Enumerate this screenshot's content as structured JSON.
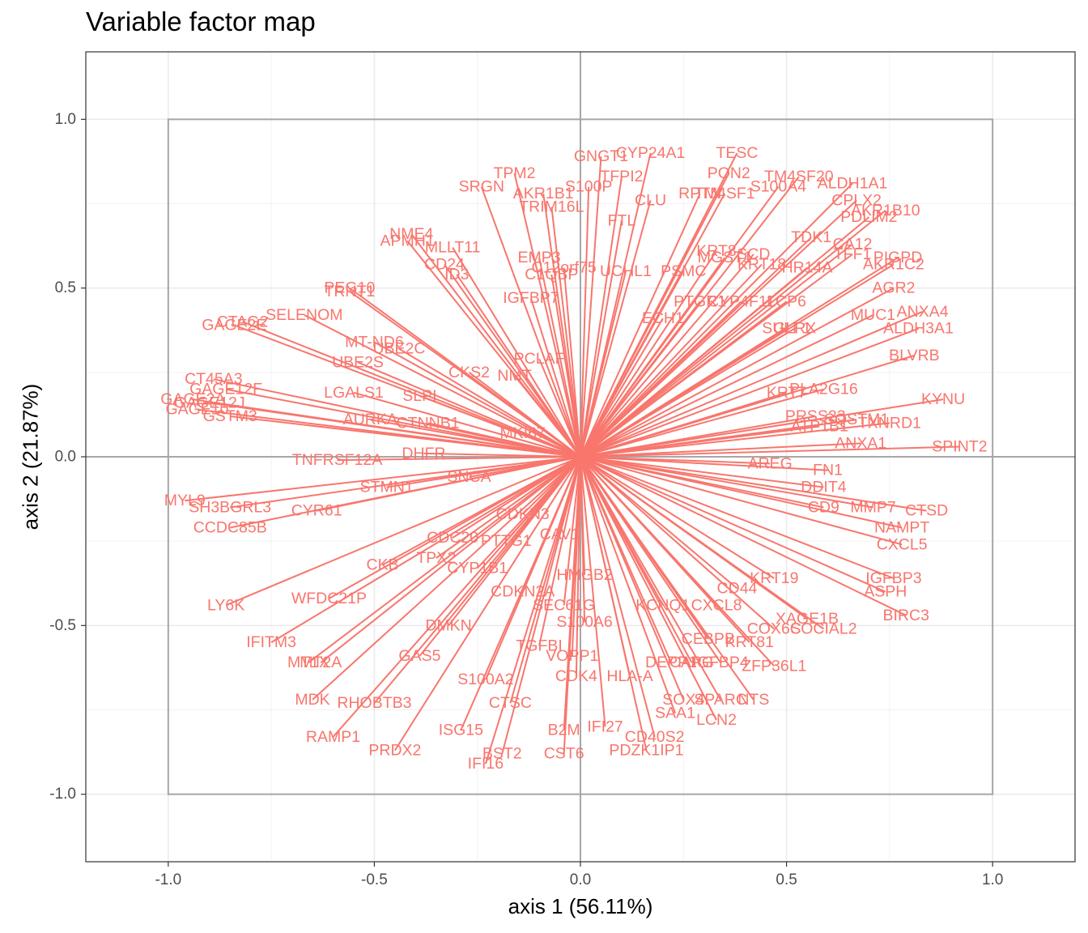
{
  "chart_data": {
    "type": "scatter",
    "title": "Variable factor map",
    "xlabel": "axis 1 (56.11%)",
    "ylabel": "axis 2 (21.87%)",
    "xlim": [
      -1.2,
      1.2
    ],
    "ylim": [
      -1.2,
      1.2
    ],
    "x_ticks": [
      -1.0,
      -0.5,
      0.0,
      0.5,
      1.0
    ],
    "y_ticks": [
      -1.0,
      -0.5,
      0.0,
      0.5,
      1.0
    ],
    "x_tick_labels": [
      "-1.0",
      "-0.5",
      "0.0",
      "0.5",
      "1.0"
    ],
    "y_tick_labels": [
      "-1.0",
      "-0.5",
      "0.0",
      "0.5",
      "1.0"
    ],
    "grid": true,
    "reference_square": [
      -1,
      1
    ],
    "arrow_color": "#F8766D",
    "variables": [
      {
        "name": "GNGT1",
        "x": 0.05,
        "y": 0.89
      },
      {
        "name": "CYP24A1",
        "x": 0.17,
        "y": 0.9
      },
      {
        "name": "TESC",
        "x": 0.38,
        "y": 0.9
      },
      {
        "name": "TPM2",
        "x": -0.16,
        "y": 0.84
      },
      {
        "name": "TFPI2",
        "x": 0.1,
        "y": 0.83
      },
      {
        "name": "PON2",
        "x": 0.36,
        "y": 0.84
      },
      {
        "name": "TM4SF20",
        "x": 0.53,
        "y": 0.83
      },
      {
        "name": "ALDH1A1",
        "x": 0.66,
        "y": 0.81
      },
      {
        "name": "SRGN",
        "x": -0.24,
        "y": 0.8
      },
      {
        "name": "S100P",
        "x": 0.02,
        "y": 0.8
      },
      {
        "name": "AKR1B1",
        "x": -0.09,
        "y": 0.78
      },
      {
        "name": "RPTN",
        "x": 0.29,
        "y": 0.78
      },
      {
        "name": "TM4SF1",
        "x": 0.35,
        "y": 0.78
      },
      {
        "name": "S100A4",
        "x": 0.48,
        "y": 0.8
      },
      {
        "name": "CLU",
        "x": 0.17,
        "y": 0.76
      },
      {
        "name": "CPLX2",
        "x": 0.67,
        "y": 0.76
      },
      {
        "name": "TRIM16L",
        "x": -0.07,
        "y": 0.74
      },
      {
        "name": "AKR1B10",
        "x": 0.74,
        "y": 0.73
      },
      {
        "name": "FTL",
        "x": 0.1,
        "y": 0.7
      },
      {
        "name": "PDLIM2",
        "x": 0.7,
        "y": 0.71
      },
      {
        "name": "NME4",
        "x": -0.41,
        "y": 0.66
      },
      {
        "name": "APMH1",
        "x": -0.42,
        "y": 0.64
      },
      {
        "name": "TDK1",
        "x": 0.56,
        "y": 0.65
      },
      {
        "name": "MLLT11",
        "x": -0.31,
        "y": 0.62
      },
      {
        "name": "CA12",
        "x": 0.66,
        "y": 0.63
      },
      {
        "name": "EMP3",
        "x": -0.1,
        "y": 0.59
      },
      {
        "name": "KRT8",
        "x": 0.33,
        "y": 0.61
      },
      {
        "name": "CD24",
        "x": -0.33,
        "y": 0.57
      },
      {
        "name": "C12orf75",
        "x": -0.04,
        "y": 0.56
      },
      {
        "name": "SCD",
        "x": 0.42,
        "y": 0.6
      },
      {
        "name": "TFF1",
        "x": 0.66,
        "y": 0.6
      },
      {
        "name": "PIGPD",
        "x": 0.77,
        "y": 0.59
      },
      {
        "name": "ID3",
        "x": -0.3,
        "y": 0.54
      },
      {
        "name": "C1QBP",
        "x": -0.07,
        "y": 0.54
      },
      {
        "name": "MGST1",
        "x": 0.35,
        "y": 0.59
      },
      {
        "name": "UCHL1",
        "x": 0.11,
        "y": 0.55
      },
      {
        "name": "PSMC",
        "x": 0.25,
        "y": 0.55
      },
      {
        "name": "KRT18",
        "x": 0.44,
        "y": 0.57
      },
      {
        "name": "HR14A",
        "x": 0.55,
        "y": 0.56
      },
      {
        "name": "AKR1C2",
        "x": 0.76,
        "y": 0.57
      },
      {
        "name": "AGR2",
        "x": 0.76,
        "y": 0.5
      },
      {
        "name": "PEG10",
        "x": -0.56,
        "y": 0.5
      },
      {
        "name": "TRNT1",
        "x": -0.56,
        "y": 0.49
      },
      {
        "name": "IGFBP7",
        "x": -0.12,
        "y": 0.47
      },
      {
        "name": "PTGR1",
        "x": 0.29,
        "y": 0.46
      },
      {
        "name": "CYP4F11",
        "x": 0.39,
        "y": 0.46
      },
      {
        "name": "LCP6",
        "x": 0.5,
        "y": 0.46
      },
      {
        "name": "MUC1",
        "x": 0.71,
        "y": 0.42
      },
      {
        "name": "ANXA4",
        "x": 0.83,
        "y": 0.43
      },
      {
        "name": "SELENOM",
        "x": -0.67,
        "y": 0.42
      },
      {
        "name": "ECH1",
        "x": 0.2,
        "y": 0.41
      },
      {
        "name": "CTAG2",
        "x": -0.82,
        "y": 0.4
      },
      {
        "name": "GAGE2E",
        "x": -0.84,
        "y": 0.39
      },
      {
        "name": "GLRX",
        "x": 0.52,
        "y": 0.38
      },
      {
        "name": "SULF1",
        "x": 0.5,
        "y": 0.38
      },
      {
        "name": "ALDH3A1",
        "x": 0.82,
        "y": 0.38
      },
      {
        "name": "MT-ND6",
        "x": -0.5,
        "y": 0.34
      },
      {
        "name": "UBE2C",
        "x": -0.44,
        "y": 0.32
      },
      {
        "name": "BLVRB",
        "x": 0.81,
        "y": 0.3
      },
      {
        "name": "UBE2S",
        "x": -0.54,
        "y": 0.28
      },
      {
        "name": "PCLAF",
        "x": -0.1,
        "y": 0.29
      },
      {
        "name": "CKS2",
        "x": -0.27,
        "y": 0.25
      },
      {
        "name": "CT45A3",
        "x": -0.89,
        "y": 0.23
      },
      {
        "name": "NMT",
        "x": -0.16,
        "y": 0.24
      },
      {
        "name": "GAGE12F",
        "x": -0.86,
        "y": 0.2
      },
      {
        "name": "PLA2G16",
        "x": 0.59,
        "y": 0.2
      },
      {
        "name": "KRT7",
        "x": 0.5,
        "y": 0.19
      },
      {
        "name": "LGALS1",
        "x": -0.55,
        "y": 0.19
      },
      {
        "name": "SLPI",
        "x": -0.39,
        "y": 0.18
      },
      {
        "name": "KYNU",
        "x": 0.88,
        "y": 0.17
      },
      {
        "name": "GAGE2A",
        "x": -0.94,
        "y": 0.17
      },
      {
        "name": "GAGE12J",
        "x": -0.9,
        "y": 0.16
      },
      {
        "name": "GAGE10",
        "x": -0.93,
        "y": 0.14
      },
      {
        "name": "GSTM3",
        "x": -0.85,
        "y": 0.12
      },
      {
        "name": "PRSS23",
        "x": 0.57,
        "y": 0.12
      },
      {
        "name": "SQSTM1",
        "x": 0.67,
        "y": 0.11
      },
      {
        "name": "TXNRD1",
        "x": 0.75,
        "y": 0.1
      },
      {
        "name": "AURKA",
        "x": -0.51,
        "y": 0.11
      },
      {
        "name": "CTNNB1",
        "x": -0.37,
        "y": 0.1
      },
      {
        "name": "ATP1B1",
        "x": 0.58,
        "y": 0.09
      },
      {
        "name": "MKI67",
        "x": -0.14,
        "y": 0.07
      },
      {
        "name": "ANXA1",
        "x": 0.68,
        "y": 0.04
      },
      {
        "name": "SPINT2",
        "x": 0.92,
        "y": 0.03
      },
      {
        "name": "DHFR",
        "x": -0.38,
        "y": 0.01
      },
      {
        "name": "TNFRSF12A",
        "x": -0.59,
        "y": -0.01
      },
      {
        "name": "AREG",
        "x": 0.46,
        "y": -0.02
      },
      {
        "name": "FN1",
        "x": 0.6,
        "y": -0.04
      },
      {
        "name": "MYL9",
        "x": -0.96,
        "y": -0.13
      },
      {
        "name": "STMN1",
        "x": -0.47,
        "y": -0.09
      },
      {
        "name": "SNCA",
        "x": -0.27,
        "y": -0.06
      },
      {
        "name": "DDIT4",
        "x": 0.59,
        "y": -0.09
      },
      {
        "name": "SH3BGRL3",
        "x": -0.85,
        "y": -0.15
      },
      {
        "name": "CYR61",
        "x": -0.64,
        "y": -0.16
      },
      {
        "name": "CD9",
        "x": 0.59,
        "y": -0.15
      },
      {
        "name": "MMP7",
        "x": 0.71,
        "y": -0.15
      },
      {
        "name": "CTSD",
        "x": 0.84,
        "y": -0.16
      },
      {
        "name": "CCDC85B",
        "x": -0.85,
        "y": -0.21
      },
      {
        "name": "CDKN3",
        "x": -0.14,
        "y": -0.17
      },
      {
        "name": "NAMPT",
        "x": 0.78,
        "y": -0.21
      },
      {
        "name": "CDC20",
        "x": -0.31,
        "y": -0.24
      },
      {
        "name": "PTTG1",
        "x": -0.18,
        "y": -0.25
      },
      {
        "name": "CAV1",
        "x": -0.05,
        "y": -0.23
      },
      {
        "name": "CXCL5",
        "x": 0.78,
        "y": -0.26
      },
      {
        "name": "TPX2",
        "x": -0.35,
        "y": -0.3
      },
      {
        "name": "CKB",
        "x": -0.48,
        "y": -0.32
      },
      {
        "name": "CYP1B1",
        "x": -0.25,
        "y": -0.33
      },
      {
        "name": "HMGB2",
        "x": 0.01,
        "y": -0.35
      },
      {
        "name": "IGFBP3",
        "x": 0.76,
        "y": -0.36
      },
      {
        "name": "KRT19",
        "x": 0.47,
        "y": -0.36
      },
      {
        "name": "ASPH",
        "x": 0.74,
        "y": -0.4
      },
      {
        "name": "CD44",
        "x": 0.38,
        "y": -0.39
      },
      {
        "name": "CDKN2A",
        "x": -0.14,
        "y": -0.4
      },
      {
        "name": "WFDC21P",
        "x": -0.61,
        "y": -0.42
      },
      {
        "name": "LY6K",
        "x": -0.86,
        "y": -0.44
      },
      {
        "name": "SEC61G",
        "x": -0.04,
        "y": -0.44
      },
      {
        "name": "KCNQ1",
        "x": 0.2,
        "y": -0.44
      },
      {
        "name": "CXCL8",
        "x": 0.33,
        "y": -0.44
      },
      {
        "name": "BIRC3",
        "x": 0.79,
        "y": -0.47
      },
      {
        "name": "S100A6",
        "x": 0.01,
        "y": -0.49
      },
      {
        "name": "XAGE1B",
        "x": 0.55,
        "y": -0.48
      },
      {
        "name": "DMKN",
        "x": -0.32,
        "y": -0.5
      },
      {
        "name": "COX6C",
        "x": 0.47,
        "y": -0.51
      },
      {
        "name": "SOCIAL2",
        "x": 0.59,
        "y": -0.51
      },
      {
        "name": "IFITM3",
        "x": -0.75,
        "y": -0.55
      },
      {
        "name": "CEBPB",
        "x": 0.31,
        "y": -0.54
      },
      {
        "name": "KRT81",
        "x": 0.41,
        "y": -0.55
      },
      {
        "name": "TGFBI",
        "x": -0.1,
        "y": -0.56
      },
      {
        "name": "GAS5",
        "x": -0.39,
        "y": -0.59
      },
      {
        "name": "VOPP1",
        "x": -0.02,
        "y": -0.59
      },
      {
        "name": "MT2A",
        "x": -0.63,
        "y": -0.61
      },
      {
        "name": "MT1X",
        "x": -0.66,
        "y": -0.61
      },
      {
        "name": "DEPP1",
        "x": 0.22,
        "y": -0.61
      },
      {
        "name": "CAPG",
        "x": 0.27,
        "y": -0.61
      },
      {
        "name": "IGFBP4",
        "x": 0.34,
        "y": -0.61
      },
      {
        "name": "ZFP36L1",
        "x": 0.47,
        "y": -0.62
      },
      {
        "name": "S100A2",
        "x": -0.23,
        "y": -0.66
      },
      {
        "name": "CDK4",
        "x": -0.01,
        "y": -0.65
      },
      {
        "name": "HLA-A",
        "x": 0.12,
        "y": -0.65
      },
      {
        "name": "MDK",
        "x": -0.65,
        "y": -0.72
      },
      {
        "name": "RHOBTB3",
        "x": -0.5,
        "y": -0.73
      },
      {
        "name": "CTSC",
        "x": -0.17,
        "y": -0.73
      },
      {
        "name": "SOX4",
        "x": 0.25,
        "y": -0.72
      },
      {
        "name": "SPARC",
        "x": 0.34,
        "y": -0.72
      },
      {
        "name": "NTS",
        "x": 0.42,
        "y": -0.72
      },
      {
        "name": "LCN2",
        "x": 0.33,
        "y": -0.78
      },
      {
        "name": "SAA1",
        "x": 0.23,
        "y": -0.76
      },
      {
        "name": "ISG15",
        "x": -0.29,
        "y": -0.81
      },
      {
        "name": "IFI27",
        "x": 0.06,
        "y": -0.8
      },
      {
        "name": "B2M",
        "x": -0.04,
        "y": -0.81
      },
      {
        "name": "RAMP1",
        "x": -0.6,
        "y": -0.83
      },
      {
        "name": "CD40S2",
        "x": 0.18,
        "y": -0.83
      },
      {
        "name": "PRDX2",
        "x": -0.45,
        "y": -0.87
      },
      {
        "name": "PDZK1IP1",
        "x": 0.16,
        "y": -0.87
      },
      {
        "name": "BST2",
        "x": -0.19,
        "y": -0.88
      },
      {
        "name": "CST6",
        "x": -0.04,
        "y": -0.88
      },
      {
        "name": "IFI16",
        "x": -0.23,
        "y": -0.91
      }
    ]
  }
}
